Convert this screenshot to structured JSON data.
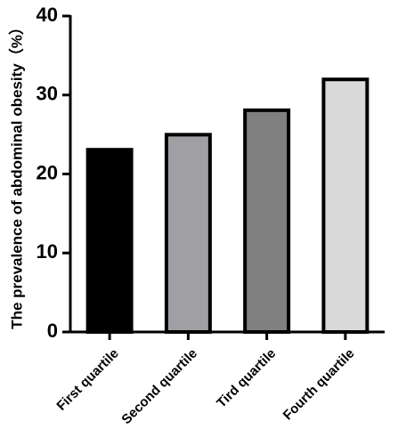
{
  "chart_data": {
    "type": "bar",
    "y_label": "The prevalence of abdominal obesity（%）",
    "categories": [
      "First quartile",
      "Second quartile",
      "Tird quartile",
      "Fourth quartile"
    ],
    "values": [
      23.3,
      25.2,
      28.3,
      32.2
    ],
    "colors": [
      "#000000",
      "#a0a0a4",
      "#808080",
      "#d9d9d9"
    ],
    "ylim": [
      0,
      40
    ],
    "yticks": [
      0,
      10,
      20,
      30,
      40
    ],
    "grid": false
  }
}
